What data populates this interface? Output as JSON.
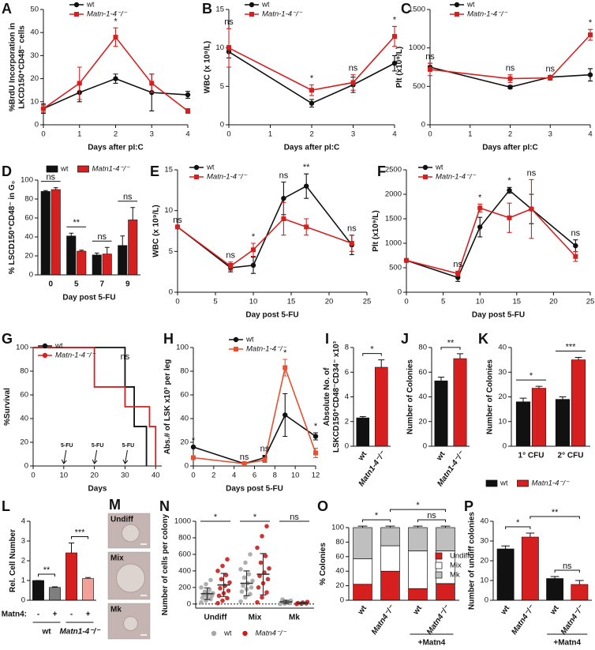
{
  "chart_data": [
    {
      "panel": "A",
      "type": "line",
      "ylabel": [
        "%BrdU Incorporation in",
        "LKCD150⁺CD48⁻ cells"
      ],
      "xlabel": "Days after pI:C",
      "x": [
        0,
        1,
        2,
        3,
        4
      ],
      "xlim": [
        0,
        4
      ],
      "xticks": [
        0,
        1,
        2,
        3,
        4
      ],
      "ylim": [
        0,
        50
      ],
      "yticks": [
        0,
        10,
        20,
        30,
        40,
        50
      ],
      "series": [
        {
          "name": "wt",
          "color": "#111111",
          "marker": "circle",
          "values": [
            7,
            14,
            20,
            14,
            13
          ],
          "errors": [
            2,
            4,
            2,
            8,
            1.5
          ]
        },
        {
          "name": "Matn-1-4⁻/⁻",
          "color": "#d62020",
          "marker": "square",
          "values": [
            7,
            18,
            38,
            18,
            6
          ],
          "errors": [
            1.5,
            7,
            4,
            4,
            1
          ]
        }
      ],
      "annotations": [
        {
          "x": 2,
          "text": "*"
        }
      ]
    },
    {
      "panel": "B",
      "type": "line",
      "ylabel": "WBC (x 10⁹/L)",
      "xlabel": "Days after pI:C",
      "x": [
        0,
        2,
        3,
        4
      ],
      "xlim": [
        0,
        4
      ],
      "xticks": [
        0,
        1,
        2,
        3,
        4
      ],
      "ylim": [
        0,
        15
      ],
      "yticks": [
        0,
        5,
        10,
        15
      ],
      "series": [
        {
          "name": "wt",
          "color": "#111111",
          "marker": "circle",
          "values": [
            9.5,
            2.8,
            5.2,
            8
          ],
          "errors": [
            0.8,
            0.5,
            1,
            1
          ]
        },
        {
          "name": "Matn-1-4⁻/⁻",
          "color": "#d62020",
          "marker": "square",
          "values": [
            10,
            4.5,
            5.5,
            11.5
          ],
          "errors": [
            2.5,
            0.7,
            1,
            1.3
          ]
        }
      ],
      "annotations": [
        {
          "x": 0,
          "text": "ns"
        },
        {
          "x": 2,
          "text": "*"
        },
        {
          "x": 3,
          "text": "ns"
        },
        {
          "x": 4,
          "text": "*"
        }
      ]
    },
    {
      "panel": "C",
      "type": "line",
      "ylabel": "Plt (x10⁹/L)",
      "xlabel": "Days after pI:C",
      "x": [
        0,
        2,
        3,
        4
      ],
      "xlim": [
        0,
        4
      ],
      "xticks": [
        0,
        1,
        2,
        3,
        4
      ],
      "ylim": [
        0,
        1500
      ],
      "yticks": [
        0,
        500,
        1000,
        1500
      ],
      "series": [
        {
          "name": "wt",
          "color": "#111111",
          "marker": "circle",
          "values": [
            750,
            490,
            620,
            650
          ],
          "errors": [
            50,
            20,
            20,
            80
          ]
        },
        {
          "name": "Matn-1-4⁻/⁻",
          "color": "#d62020",
          "marker": "square",
          "values": [
            720,
            600,
            610,
            1170
          ],
          "errors": [
            80,
            50,
            30,
            70
          ]
        }
      ],
      "annotations": [
        {
          "x": 0,
          "text": "ns"
        },
        {
          "x": 2,
          "text": "ns"
        },
        {
          "x": 3,
          "text": "ns"
        },
        {
          "x": 4,
          "text": "*"
        }
      ]
    },
    {
      "panel": "D",
      "type": "bar",
      "ylabel": "% LSCD150⁺CD48⁻ in G₀",
      "xlabel": "Day post 5-FU",
      "categories": [
        "0",
        "5",
        "7",
        "9"
      ],
      "ylim": [
        0,
        100
      ],
      "yticks": [
        0,
        20,
        40,
        60,
        80,
        100
      ],
      "series": [
        {
          "name": "wt",
          "color": "#111111",
          "values": [
            88,
            41,
            21,
            31
          ],
          "errors": [
            1,
            3,
            2,
            10
          ]
        },
        {
          "name": "Matn1-4⁻/⁻",
          "color": "#d62020",
          "values": [
            90,
            25,
            22,
            58
          ],
          "errors": [
            2,
            1,
            7,
            13
          ]
        }
      ],
      "annotations": [
        "ns",
        "**",
        "ns",
        "ns"
      ]
    },
    {
      "panel": "E",
      "type": "line",
      "ylabel": "WBC (x 10⁹/L)",
      "xlabel": "Day post 5-FU",
      "x": [
        0,
        7,
        10,
        14,
        17,
        23
      ],
      "xlim": [
        0,
        25
      ],
      "xticks": [
        0,
        5,
        10,
        15,
        20,
        25
      ],
      "ylim": [
        0,
        15
      ],
      "yticks": [
        0,
        5,
        10,
        15
      ],
      "series": [
        {
          "name": "wt",
          "color": "#111111",
          "marker": "circle",
          "values": [
            8,
            3,
            3.3,
            11.5,
            13,
            5.8
          ],
          "errors": [
            0,
            0.5,
            1,
            2,
            1.5,
            1.2
          ]
        },
        {
          "name": "Matn-1-4⁻/⁻",
          "color": "#d62020",
          "marker": "square",
          "values": [
            8,
            3.2,
            5.2,
            9,
            8,
            6
          ],
          "errors": [
            0,
            0.5,
            0.8,
            2,
            1,
            1
          ]
        }
      ],
      "annotations": [
        {
          "x": 0,
          "text": "ns"
        },
        {
          "x": 7,
          "text": "ns"
        },
        {
          "x": 10,
          "text": "*"
        },
        {
          "x": 14,
          "text": "ns"
        },
        {
          "x": 17,
          "text": "**"
        },
        {
          "x": 23,
          "text": "ns"
        }
      ]
    },
    {
      "panel": "F",
      "type": "line",
      "ylabel": "Plt (x10⁹/L)",
      "xlabel": "Day post 5-FU",
      "x": [
        0,
        7,
        10,
        14,
        17,
        23
      ],
      "xlim": [
        0,
        25
      ],
      "xticks": [
        0,
        5,
        10,
        15,
        20,
        25
      ],
      "ylim": [
        0,
        2500
      ],
      "yticks": [
        0,
        500,
        1000,
        1500,
        2000,
        2500
      ],
      "series": [
        {
          "name": "wt",
          "color": "#111111",
          "marker": "circle",
          "values": [
            650,
            300,
            1330,
            2080,
            1700,
            950
          ],
          "errors": [
            30,
            80,
            200,
            60,
            300,
            120
          ]
        },
        {
          "name": "Matn-1-4⁻/⁻",
          "color": "#d62020",
          "marker": "square",
          "values": [
            650,
            380,
            1720,
            1520,
            1700,
            730
          ],
          "errors": [
            30,
            50,
            80,
            300,
            600,
            100
          ]
        }
      ],
      "annotations": [
        {
          "x": 7,
          "text": "ns"
        },
        {
          "x": 10,
          "text": "*"
        },
        {
          "x": 14,
          "text": "*"
        },
        {
          "x": 17,
          "text": "ns"
        },
        {
          "x": 23,
          "text": "ns"
        }
      ]
    },
    {
      "panel": "G",
      "type": "survival",
      "ylabel": "%Survival",
      "xlabel": "Days",
      "xlim": [
        0,
        42
      ],
      "xticks": [
        0,
        10,
        20,
        30,
        40
      ],
      "ylim": [
        0,
        100
      ],
      "yticks": [
        0,
        20,
        40,
        60,
        80,
        100
      ],
      "series": [
        {
          "name": "wt",
          "color": "#111111",
          "x": [
            0,
            30,
            33,
            37
          ],
          "values": [
            100,
            66.7,
            33.3,
            0
          ]
        },
        {
          "name": "Matn-1-4⁻/⁻",
          "color": "#d62020",
          "x": [
            0,
            20,
            30,
            38,
            40
          ],
          "values": [
            100,
            66.7,
            50,
            33.3,
            0
          ]
        }
      ],
      "annotations": [
        {
          "x": 30,
          "text": "ns"
        }
      ],
      "treatments": [
        {
          "x": 10,
          "text": "5-FU"
        },
        {
          "x": 20,
          "text": "5-FU"
        },
        {
          "x": 30,
          "text": "5-FU"
        }
      ]
    },
    {
      "panel": "H",
      "type": "line",
      "ylabel": "Abs.# of LSK x10³ per leg",
      "xlabel": "Days post 5-FU",
      "x": [
        0,
        5,
        7,
        9,
        12
      ],
      "xlim": [
        0,
        12
      ],
      "xticks": [
        0,
        2,
        4,
        6,
        8,
        10,
        12
      ],
      "ylim": [
        0,
        100
      ],
      "yticks": [
        0,
        20,
        40,
        60,
        80,
        100
      ],
      "series": [
        {
          "name": "wt",
          "color": "#111111",
          "marker": "circle",
          "values": [
            16,
            2,
            7,
            43,
            25
          ],
          "errors": [
            0,
            0,
            2,
            18,
            3
          ]
        },
        {
          "name": "Matn-1-4⁻/⁻",
          "color": "#e8502f",
          "marker": "square",
          "values": [
            7,
            2,
            5,
            83,
            11
          ],
          "errors": [
            0,
            0,
            2,
            7,
            4
          ]
        }
      ],
      "annotations": [
        {
          "x": 0,
          "text": "*"
        },
        {
          "x": 5,
          "text": "ns"
        },
        {
          "x": 7,
          "text": "ns"
        },
        {
          "x": 9,
          "text": "*"
        },
        {
          "x": 12,
          "text": "*"
        }
      ]
    },
    {
      "panel": "I",
      "type": "bar",
      "ylabel": [
        "Absolute No. of",
        "LSKCD150⁺CD48⁻CD34⁻ x10³"
      ],
      "categories": [
        "wt",
        "Matn1-4⁻/⁻"
      ],
      "values": [
        2.3,
        6.4
      ],
      "errors": [
        0.1,
        0.6
      ],
      "colors": [
        "#111111",
        "#d62020"
      ],
      "ylim": [
        0,
        8
      ],
      "yticks": [
        0,
        2,
        4,
        6,
        8
      ],
      "annotations": [
        "*"
      ]
    },
    {
      "panel": "J",
      "type": "bar",
      "ylabel": "Number of Colonies",
      "categories": [
        "wt",
        "Matn1-4⁻/⁻"
      ],
      "values": [
        53,
        71
      ],
      "errors": [
        3,
        4
      ],
      "colors": [
        "#111111",
        "#d62020"
      ],
      "ylim": [
        0,
        80
      ],
      "yticks": [
        0,
        20,
        40,
        60,
        80
      ],
      "annotations": [
        "**"
      ]
    },
    {
      "panel": "K",
      "type": "bar",
      "ylabel": "Number of Colonies",
      "categories": [
        "1° CFU",
        "2° CFU"
      ],
      "ylim": [
        0,
        40
      ],
      "yticks": [
        0,
        10,
        20,
        30,
        40
      ],
      "series": [
        {
          "name": "wt",
          "color": "#111111",
          "values": [
            18,
            19
          ],
          "errors": [
            1.5,
            1
          ]
        },
        {
          "name": "Matn1-4⁻/⁻",
          "color": "#d62020",
          "values": [
            23.5,
            35
          ],
          "errors": [
            0.8,
            1
          ]
        }
      ],
      "annotations": [
        "*",
        "***"
      ]
    },
    {
      "panel": "L",
      "type": "bar",
      "ylabel": "Rel. Cell Number",
      "row_label": "Matn4:",
      "categories": [
        "-",
        "+",
        "-",
        "+"
      ],
      "groups": [
        "wt",
        "Matn1-4⁻/⁻"
      ],
      "values": [
        1,
        0.65,
        2.4,
        1.1
      ],
      "errors": [
        0,
        0.03,
        0.5,
        0.05
      ],
      "colors": [
        "#111111",
        "#7f7f7f",
        "#d62020",
        "#f4a09a"
      ],
      "ylim": [
        0,
        4
      ],
      "yticks": [
        0,
        1,
        2,
        3,
        4
      ],
      "annotations": [
        "**",
        "***"
      ]
    },
    {
      "panel": "M",
      "type": "image",
      "labels": [
        "Undiff",
        "Mix",
        "Mk"
      ]
    },
    {
      "panel": "N",
      "type": "dot",
      "ylabel": "Number of cells per colony",
      "categories": [
        "Undiff",
        "Mix",
        "Mk"
      ],
      "ylim": [
        -50,
        1000
      ],
      "yticks": [
        0,
        200,
        400,
        600,
        800,
        1000
      ],
      "series": [
        {
          "name": "wt",
          "color": "#a6a6a6",
          "values": [
            [
              20,
              40,
              60,
              75,
              90,
              100,
              110,
              120,
              130,
              150,
              170,
              200,
              240,
              290
            ],
            [
              30,
              80,
              120,
              150,
              180,
              200,
              220,
              250,
              280,
              320,
              360,
              420,
              500,
              600
            ],
            [
              0,
              5,
              10,
              20,
              30,
              40,
              55
            ]
          ],
          "means": [
            125,
            250,
            25
          ],
          "sd": [
            70,
            150,
            20
          ]
        },
        {
          "name": "Matn4⁻/⁻",
          "color": "#c81e1e",
          "values": [
            [
              10,
              40,
              70,
              100,
              130,
              160,
              190,
              220,
              260,
              300,
              350,
              400,
              460,
              540
            ],
            [
              20,
              80,
              140,
              200,
              250,
              300,
              340,
              380,
              430,
              500,
              580,
              680,
              820,
              940
            ],
            [
              0,
              3,
              8,
              12,
              18,
              25
            ]
          ],
          "means": [
            230,
            360,
            11
          ],
          "sd": [
            140,
            250,
            8
          ]
        }
      ],
      "annotations": [
        "*",
        "*",
        "ns"
      ]
    },
    {
      "panel": "O",
      "type": "stacked",
      "ylabel": "% Colonies",
      "categories": [
        "wt",
        "Matn4⁻/⁻",
        "wt",
        "Matn4⁻/⁻"
      ],
      "group_label": "+Matn4",
      "ylim": [
        0,
        100
      ],
      "yticks": [
        0,
        20,
        40,
        60,
        80,
        100
      ],
      "series": [
        {
          "name": "Undiff",
          "color": "#d62020",
          "values": [
            22,
            40,
            16,
            23
          ],
          "errors": [
            3,
            4,
            2,
            1
          ]
        },
        {
          "name": "Mix",
          "color": "#ffffff",
          "values": [
            35,
            35,
            52,
            45
          ],
          "errors": [
            3,
            3,
            3,
            4
          ]
        },
        {
          "name": "Mk",
          "color": "#bfbfbf",
          "values": [
            43,
            25,
            32,
            32
          ],
          "errors": [
            2,
            2,
            2,
            2
          ]
        }
      ],
      "annotations": [
        "*",
        "*",
        "ns"
      ]
    },
    {
      "panel": "P",
      "type": "bar",
      "ylabel": "Number of undiff colonies",
      "categories": [
        "wt",
        "Matn4⁻/⁻",
        "wt",
        "Matn4⁻/⁻"
      ],
      "group_label": "+Matn4",
      "values": [
        26,
        32,
        11,
        8
      ],
      "errors": [
        1.5,
        2,
        1,
        2
      ],
      "colors": [
        "#111111",
        "#d62020",
        "#111111",
        "#d62020"
      ],
      "ylim": [
        0,
        40
      ],
      "yticks": [
        0,
        10,
        20,
        30,
        40
      ],
      "annotations": [
        "*",
        "**",
        "ns"
      ]
    }
  ]
}
